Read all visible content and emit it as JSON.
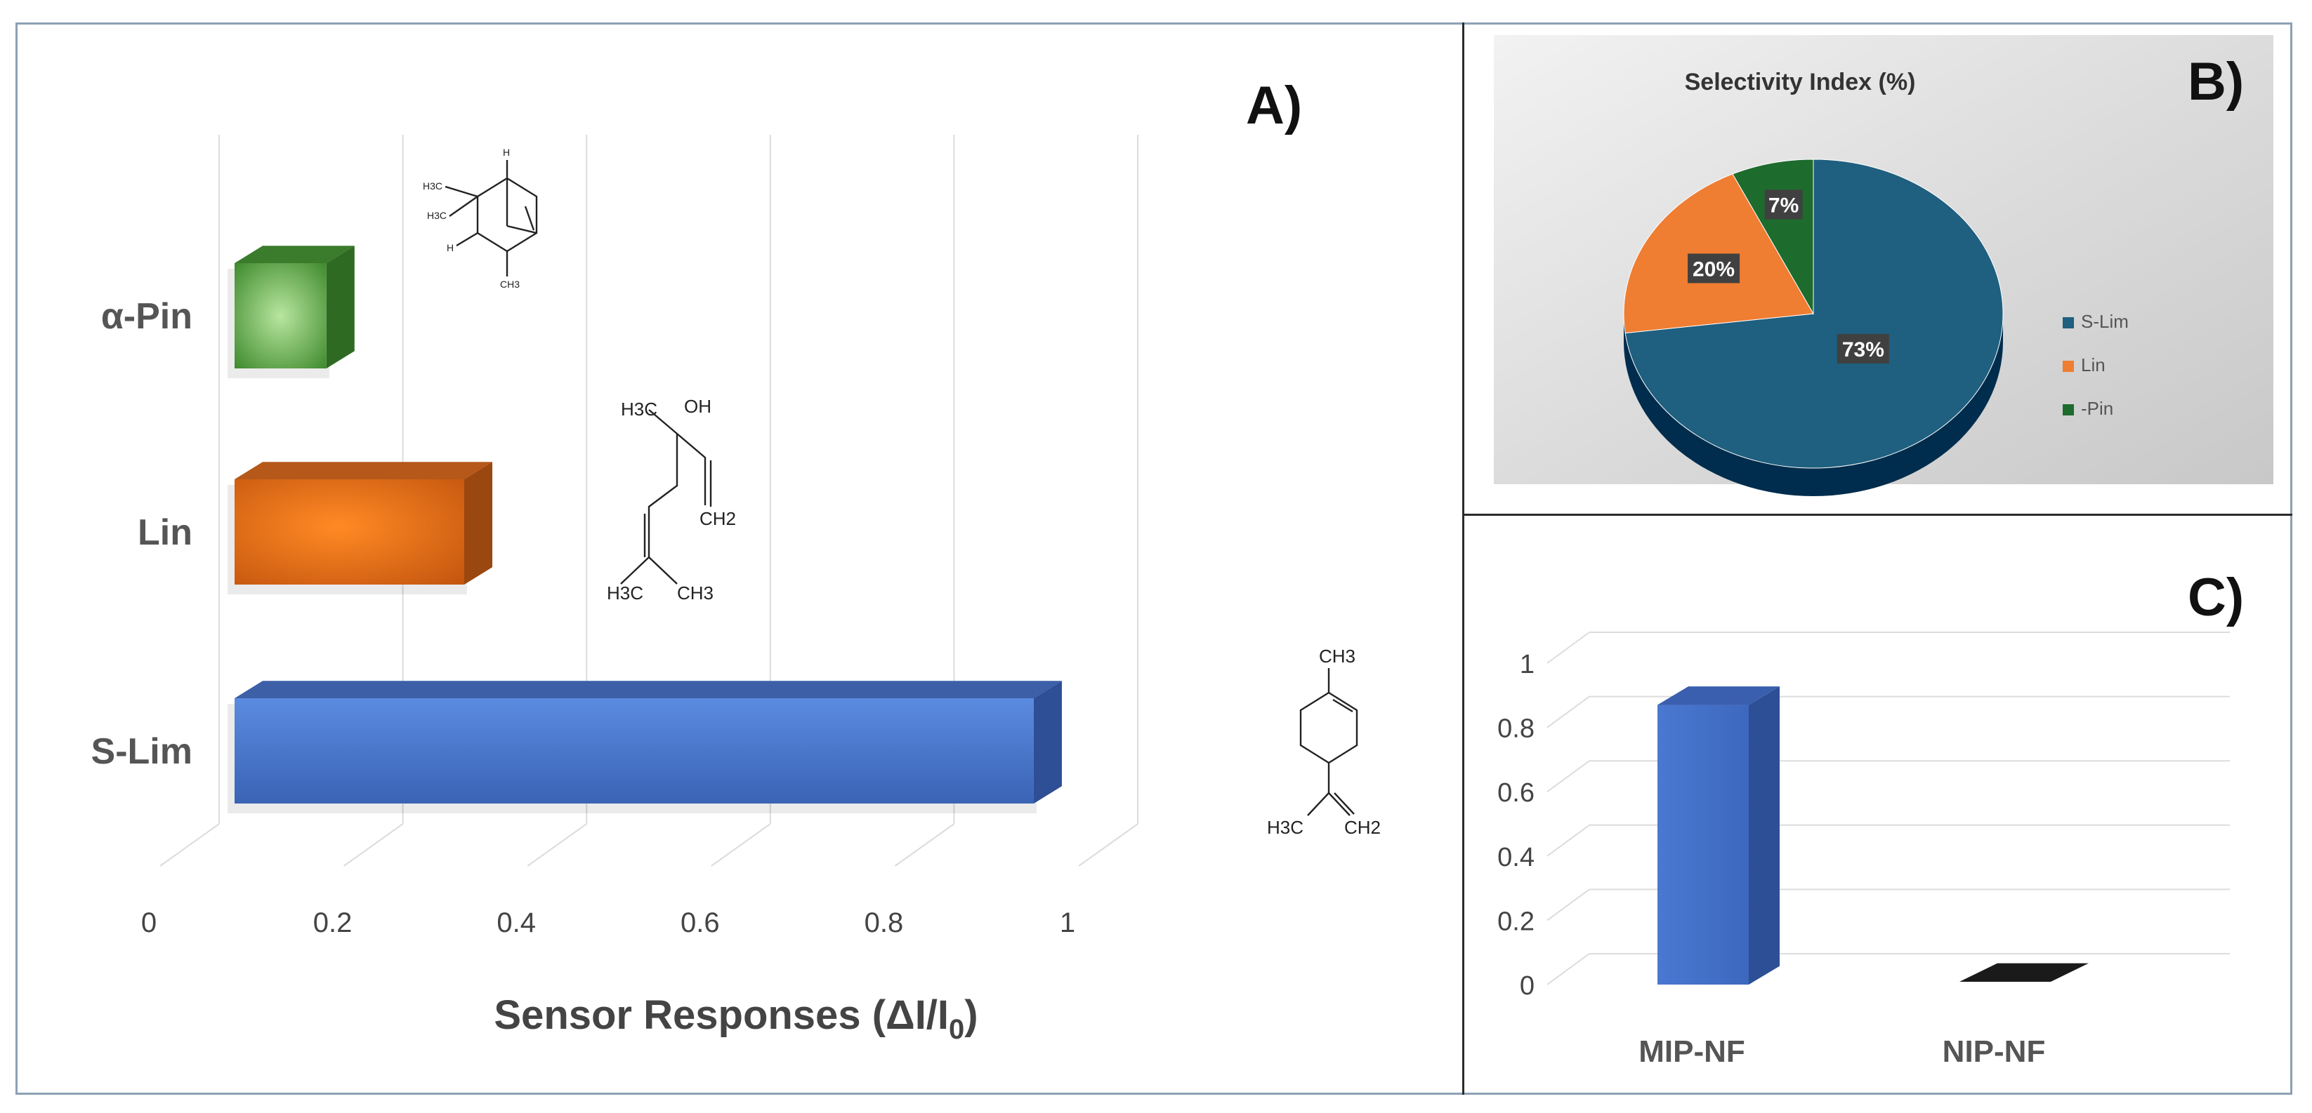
{
  "chart_data": [
    {
      "panel": "A)",
      "type": "bar",
      "orientation": "horizontal",
      "categories": [
        "α-Pin",
        "Lin",
        "S-Lim"
      ],
      "values": [
        0.1,
        0.25,
        0.87
      ],
      "colors": [
        "#4f9a3c",
        "#e06a1c",
        "#4472c4"
      ],
      "xlabel_main": "Sensor Responses (ΔI/I",
      "xlabel_sub": "0",
      "xlabel_end": ")",
      "ylabel": "",
      "xlim": [
        0,
        1
      ],
      "xticks": [
        "0",
        "0.2",
        "0.4",
        "0.6",
        "0.8",
        "1"
      ],
      "grid": true,
      "structure_labels": {
        "pinene": [
          "H3C",
          "H3C",
          "H",
          "H",
          "CH3"
        ],
        "linalool": [
          "H3C",
          "OH",
          "CH2",
          "H3C",
          "CH3"
        ],
        "limonene": [
          "CH3",
          "H3C",
          "CH2"
        ]
      }
    },
    {
      "panel": "B)",
      "type": "pie",
      "title": "Selectivity Index (%)",
      "categories": [
        "S-Lim",
        "Lin",
        "-Pin"
      ],
      "values": [
        73,
        20,
        7
      ],
      "data_labels": [
        "73%",
        "20%",
        "7%"
      ],
      "colors": [
        "#1f5f7f",
        "#ef7d32",
        "#1e6b2e"
      ],
      "legend_position": "right"
    },
    {
      "panel": "C)",
      "type": "bar",
      "categories": [
        "MIP-NF",
        "NIP-NF"
      ],
      "values": [
        0.87,
        0.0
      ],
      "colors": [
        "#4472c4",
        "#1a1a1a"
      ],
      "ylim": [
        0,
        1
      ],
      "yticks": [
        "0",
        "0.2",
        "0.4",
        "0.6",
        "0.8",
        "1"
      ],
      "grid": true
    }
  ]
}
